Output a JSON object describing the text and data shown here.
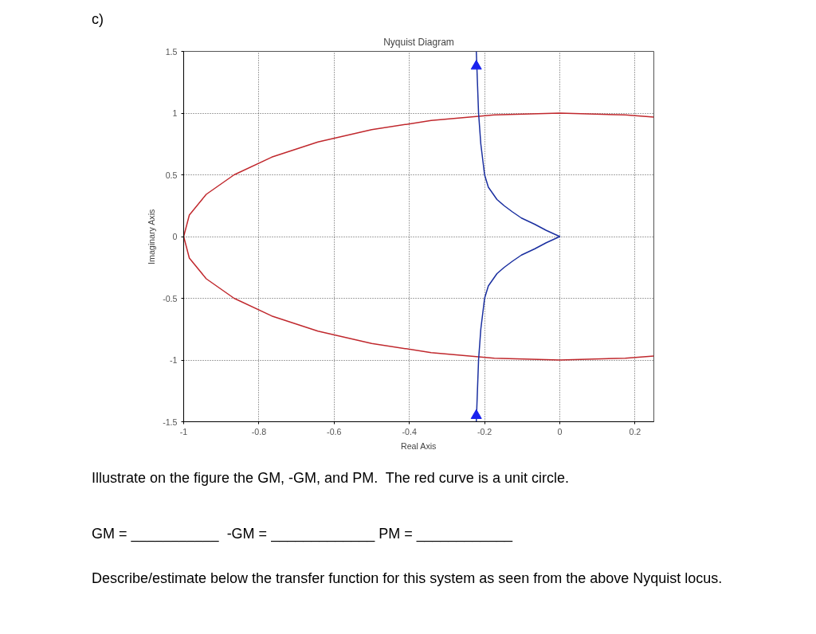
{
  "chart_data": {
    "type": "line",
    "title": "Nyquist Diagram",
    "xlabel": "Real Axis",
    "ylabel": "Imaginary Axis",
    "xlim": [
      -1,
      0.25
    ],
    "ylim": [
      -1.5,
      1.5
    ],
    "xticks": [
      -1,
      -0.8,
      -0.6,
      -0.4,
      -0.2,
      0,
      0.2
    ],
    "yticks": [
      -1.5,
      -1,
      -0.5,
      0,
      0.5,
      1,
      1.5
    ],
    "grid": true,
    "line_style": "solid",
    "marker": "none",
    "series": [
      {
        "color": "#c0282d",
        "x": [
          0.25,
          0.174,
          0,
          -0.174,
          -0.342,
          -0.5,
          -0.643,
          -0.766,
          -0.866,
          -0.94,
          -0.985,
          -1,
          -0.985,
          -0.94,
          -0.866,
          -0.766,
          -0.643,
          -0.5,
          -0.342,
          -0.174,
          0,
          0.174,
          0.25
        ],
        "values": [
          0.968,
          0.985,
          1,
          0.985,
          0.94,
          0.866,
          0.766,
          0.643,
          0.5,
          0.342,
          0.174,
          0,
          -0.174,
          -0.342,
          -0.5,
          -0.643,
          -0.766,
          -0.866,
          -0.94,
          -0.985,
          -1,
          -0.985,
          -0.968
        ]
      },
      {
        "color": "#1a2fa0",
        "x": [
          -0.222,
          -0.219,
          -0.216,
          -0.21,
          -0.2,
          -0.19,
          -0.167,
          -0.148,
          -0.126,
          -0.102,
          -0.067,
          -0.036,
          0,
          -0.036,
          -0.067,
          -0.102,
          -0.126,
          -0.148,
          -0.167,
          -0.19,
          -0.2,
          -0.21,
          -0.216,
          -0.219,
          -0.222
        ],
        "values": [
          1.5,
          1.25,
          1,
          0.75,
          0.5,
          0.4,
          0.3,
          0.25,
          0.2,
          0.15,
          0.1,
          0.05,
          0,
          -0.05,
          -0.1,
          -0.15,
          -0.2,
          -0.25,
          -0.3,
          -0.4,
          -0.5,
          -0.75,
          -1,
          -1.25,
          -1.5
        ]
      },
      {
        "type": "scatter",
        "marker": "triangle",
        "color": "#1a22ee",
        "x": [
          -0.222,
          -0.222
        ],
        "values": [
          1.38,
          -1.45
        ]
      }
    ],
    "annotations": [
      "c)",
      "Illustrate on the figure the GM, -GM, and PM.  The red curve is a unit circle.",
      "GM = ___________  -GM = _____________ PM = ____________",
      "Describe/estimate below the transfer function for this system as seen from the above Nyquist locus."
    ]
  }
}
